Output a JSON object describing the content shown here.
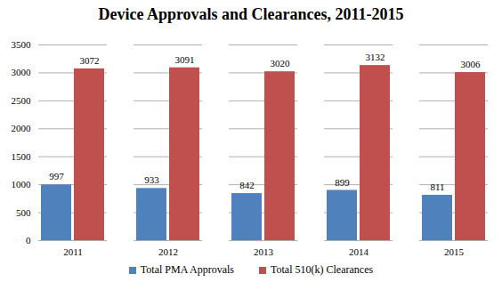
{
  "chart_data": {
    "type": "bar",
    "title": "Device Approvals and Clearances, 2011-2015",
    "categories": [
      "2011",
      "2012",
      "2013",
      "2014",
      "2015"
    ],
    "series": [
      {
        "name": "Total PMA Approvals",
        "color": "#4f81bd",
        "values": [
          997,
          933,
          842,
          899,
          811
        ]
      },
      {
        "name": "Total 510(k) Clearances",
        "color": "#c0504d",
        "values": [
          3072,
          3091,
          3020,
          3132,
          3006
        ]
      }
    ],
    "ylim": [
      0,
      3500
    ],
    "yticks": [
      0,
      500,
      1000,
      1500,
      2000,
      2500,
      3000,
      3500
    ],
    "grid": true,
    "legend": "bottom",
    "data_labels": true
  }
}
